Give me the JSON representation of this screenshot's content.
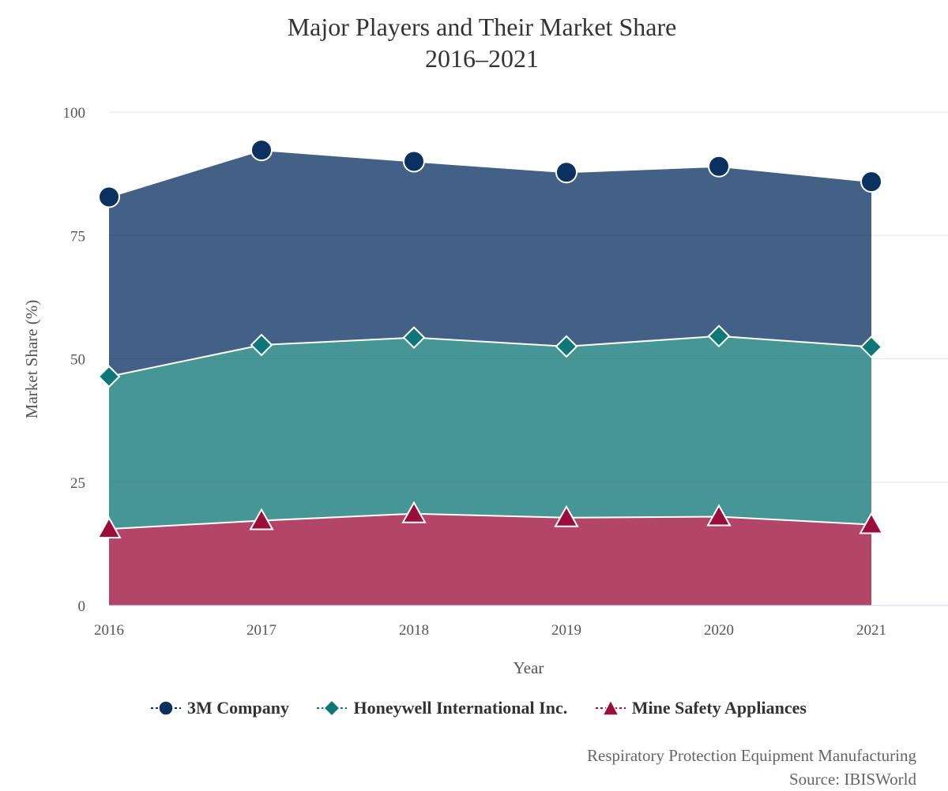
{
  "chart_data": {
    "type": "area",
    "stacked": true,
    "title": [
      "Major Players and Their Market Share",
      "2016–2021"
    ],
    "xlabel": "Year",
    "ylabel": "Market Share (%)",
    "ylim": [
      0,
      100
    ],
    "yticks": [
      "0",
      "25",
      "50",
      "75",
      "100"
    ],
    "categories": [
      "2016",
      "2017",
      "2018",
      "2019",
      "2020",
      "2021"
    ],
    "grid": true,
    "legend_position": "bottom-center",
    "series": [
      {
        "name": "Mine Safety Appliances",
        "values": [
          15.5,
          17.2,
          18.6,
          17.8,
          18.0,
          16.4
        ],
        "color": "#9b0d3a",
        "marker": "triangle"
      },
      {
        "name": "Honeywell International Inc.",
        "values": [
          30.9,
          35.6,
          35.7,
          34.7,
          36.6,
          36.0
        ],
        "color": "#0f7777",
        "marker": "diamond"
      },
      {
        "name": "3M Company",
        "values": [
          36.4,
          39.5,
          35.7,
          35.3,
          34.4,
          33.5
        ],
        "color": "#0b3161",
        "marker": "circle"
      }
    ]
  },
  "legend": {
    "items": [
      {
        "label": "3M Company",
        "color": "#0b3161",
        "marker": "circle"
      },
      {
        "label": "Honeywell International Inc.",
        "color": "#0f7777",
        "marker": "diamond"
      },
      {
        "label": "Mine Safety Appliances",
        "color": "#9b0d3a",
        "marker": "triangle"
      }
    ]
  },
  "credits": {
    "line1": "Respiratory Protection Equipment Manufacturing",
    "line2": "Source: IBISWorld"
  }
}
